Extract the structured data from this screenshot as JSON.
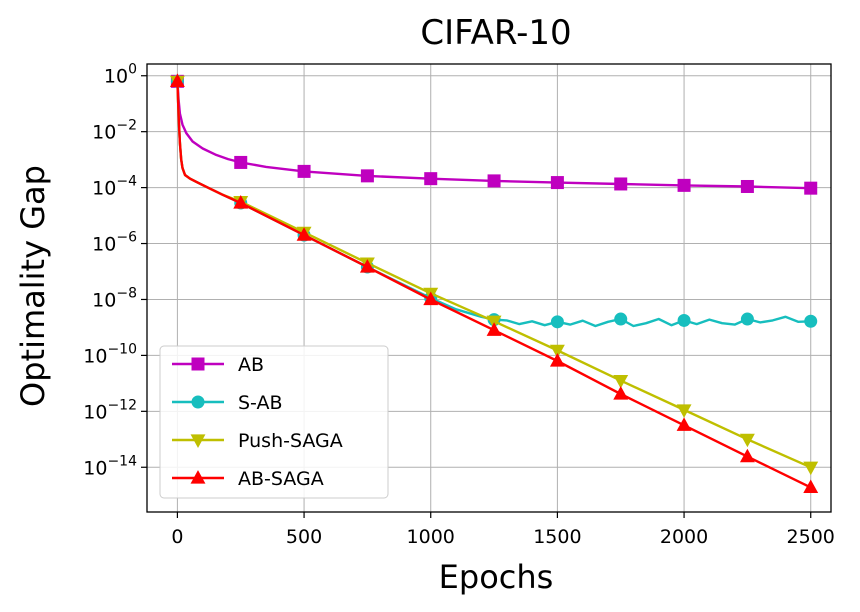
{
  "chart_data": {
    "type": "line",
    "title": "CIFAR-10",
    "xlabel": "Epochs",
    "ylabel": "Optimality Gap",
    "xlim": [
      -120,
      2580
    ],
    "ylim_log10": [
      -15.6,
      0.42
    ],
    "yscale": "log",
    "grid": true,
    "legend_position": "lower-left",
    "x_ticks": [
      {
        "value": 0,
        "label": "0"
      },
      {
        "value": 500,
        "label": "500"
      },
      {
        "value": 1000,
        "label": "1000"
      },
      {
        "value": 1500,
        "label": "1500"
      },
      {
        "value": 2000,
        "label": "2000"
      },
      {
        "value": 2500,
        "label": "2500"
      }
    ],
    "y_ticks": [
      {
        "value": 0,
        "base": "10",
        "exp": "0"
      },
      {
        "value": -2,
        "base": "10",
        "exp": "−2"
      },
      {
        "value": -4,
        "base": "10",
        "exp": "−4"
      },
      {
        "value": -6,
        "base": "10",
        "exp": "−6"
      },
      {
        "value": -8,
        "base": "10",
        "exp": "−8"
      },
      {
        "value": -10,
        "base": "10",
        "exp": "−10"
      },
      {
        "value": -12,
        "base": "10",
        "exp": "−12"
      },
      {
        "value": -14,
        "base": "10",
        "exp": "−14"
      }
    ],
    "series": [
      {
        "name": "AB",
        "color": "#bf00bf",
        "marker": "square",
        "points": [
          [
            0,
            -0.2
          ],
          [
            5,
            -0.9
          ],
          [
            10,
            -1.35
          ],
          [
            20,
            -1.75
          ],
          [
            35,
            -2.05
          ],
          [
            60,
            -2.35
          ],
          [
            100,
            -2.6
          ],
          [
            150,
            -2.82
          ],
          [
            200,
            -2.98
          ],
          [
            250,
            -3.1
          ],
          [
            350,
            -3.26
          ],
          [
            500,
            -3.42
          ],
          [
            750,
            -3.58
          ],
          [
            1000,
            -3.68
          ],
          [
            1250,
            -3.76
          ],
          [
            1500,
            -3.82
          ],
          [
            1750,
            -3.87
          ],
          [
            2000,
            -3.92
          ],
          [
            2250,
            -3.96
          ],
          [
            2500,
            -4.02
          ]
        ],
        "marker_x": [
          0,
          250,
          500,
          750,
          1000,
          1250,
          1500,
          1750,
          2000,
          2250,
          2500
        ]
      },
      {
        "name": "S-AB",
        "color": "#17bebe",
        "marker": "circle",
        "points": [
          [
            0,
            -0.2
          ],
          [
            5,
            -1.5
          ],
          [
            10,
            -2.4
          ],
          [
            15,
            -3.0
          ],
          [
            20,
            -3.3
          ],
          [
            30,
            -3.55
          ],
          [
            50,
            -3.68
          ],
          [
            80,
            -3.82
          ],
          [
            120,
            -4.0
          ],
          [
            180,
            -4.26
          ],
          [
            250,
            -4.55
          ],
          [
            500,
            -5.7
          ],
          [
            750,
            -6.84
          ],
          [
            1000,
            -7.95
          ],
          [
            1100,
            -8.35
          ],
          [
            1200,
            -8.62
          ],
          [
            1250,
            -8.72
          ],
          [
            1300,
            -8.75
          ],
          [
            1350,
            -8.88
          ],
          [
            1400,
            -8.78
          ],
          [
            1450,
            -8.92
          ],
          [
            1500,
            -8.8
          ],
          [
            1550,
            -8.9
          ],
          [
            1600,
            -8.76
          ],
          [
            1650,
            -8.95
          ],
          [
            1700,
            -8.8
          ],
          [
            1750,
            -8.7
          ],
          [
            1800,
            -8.95
          ],
          [
            1850,
            -8.85
          ],
          [
            1900,
            -8.7
          ],
          [
            1950,
            -8.92
          ],
          [
            2000,
            -8.75
          ],
          [
            2050,
            -8.88
          ],
          [
            2100,
            -8.72
          ],
          [
            2150,
            -8.85
          ],
          [
            2200,
            -8.9
          ],
          [
            2250,
            -8.7
          ],
          [
            2300,
            -8.82
          ],
          [
            2350,
            -8.75
          ],
          [
            2400,
            -8.62
          ],
          [
            2450,
            -8.8
          ],
          [
            2500,
            -8.78
          ]
        ],
        "marker_x": [
          0,
          250,
          500,
          750,
          1000,
          1250,
          1500,
          1750,
          2000,
          2250,
          2500
        ],
        "noisy_from": 1250
      },
      {
        "name": "Push-SAGA",
        "color": "#bfbf00",
        "marker": "triangle-down",
        "points": [
          [
            0,
            -0.2
          ],
          [
            5,
            -1.5
          ],
          [
            10,
            -2.4
          ],
          [
            15,
            -3.0
          ],
          [
            20,
            -3.3
          ],
          [
            30,
            -3.55
          ],
          [
            50,
            -3.68
          ],
          [
            80,
            -3.82
          ],
          [
            120,
            -4.0
          ],
          [
            180,
            -4.26
          ],
          [
            250,
            -4.5
          ],
          [
            500,
            -5.6
          ],
          [
            750,
            -6.7
          ],
          [
            1000,
            -7.78
          ],
          [
            1250,
            -8.78
          ],
          [
            1500,
            -9.82
          ],
          [
            1750,
            -10.9
          ],
          [
            2000,
            -11.95
          ],
          [
            2250,
            -13.0
          ],
          [
            2500,
            -14.0
          ]
        ],
        "marker_x": [
          0,
          250,
          500,
          750,
          1000,
          1250,
          1500,
          1750,
          2000,
          2250,
          2500
        ]
      },
      {
        "name": "AB-SAGA",
        "color": "#ff0000",
        "marker": "triangle-up",
        "points": [
          [
            0,
            -0.2
          ],
          [
            5,
            -1.5
          ],
          [
            10,
            -2.4
          ],
          [
            15,
            -3.0
          ],
          [
            20,
            -3.3
          ],
          [
            30,
            -3.55
          ],
          [
            50,
            -3.68
          ],
          [
            80,
            -3.82
          ],
          [
            120,
            -4.0
          ],
          [
            180,
            -4.26
          ],
          [
            250,
            -4.55
          ],
          [
            500,
            -5.7
          ],
          [
            750,
            -6.84
          ],
          [
            1000,
            -8.0
          ],
          [
            1250,
            -9.1
          ],
          [
            1500,
            -10.2
          ],
          [
            1750,
            -11.38
          ],
          [
            2000,
            -12.5
          ],
          [
            2250,
            -13.62
          ],
          [
            2500,
            -14.72
          ]
        ],
        "marker_x": [
          0,
          250,
          500,
          750,
          1000,
          1250,
          1500,
          1750,
          2000,
          2250,
          2500
        ]
      }
    ]
  }
}
